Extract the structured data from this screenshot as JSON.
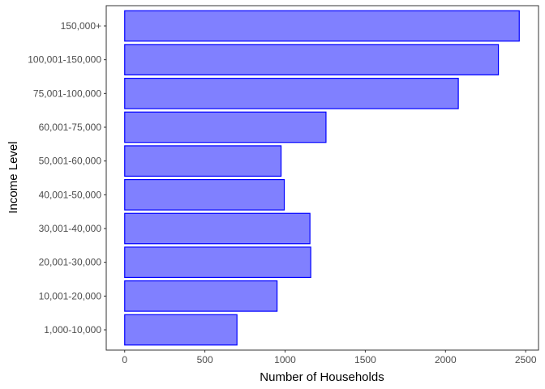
{
  "chart_data": {
    "type": "bar",
    "orientation": "horizontal",
    "title": "",
    "xlabel": "Number of Households",
    "ylabel": "Income Level",
    "categories": [
      "1,000-10,000",
      "10,001-20,000",
      "20,001-30,000",
      "30,001-40,000",
      "40,001-50,000",
      "50,001-60,000",
      "60,001-75,000",
      "75,001-100,000",
      "100,001-150,000",
      "150,000+"
    ],
    "values": [
      700,
      950,
      1160,
      1155,
      995,
      975,
      1255,
      2080,
      2330,
      2460
    ],
    "xlim": [
      -115,
      2580
    ],
    "xticks": [
      0,
      500,
      1000,
      1500,
      2000,
      2500
    ],
    "grid": false,
    "legend": "none",
    "colors": {
      "bar_fill": "#8080ff",
      "bar_stroke": "#0000ff"
    }
  }
}
